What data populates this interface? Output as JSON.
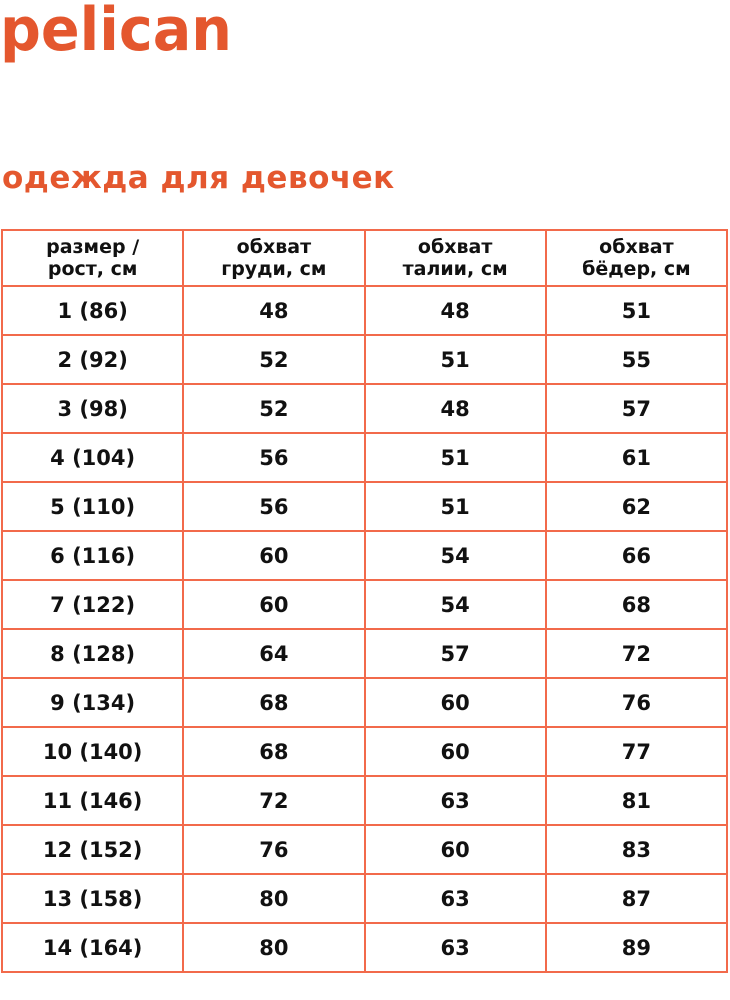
{
  "brand": {
    "logo_text": "pelican",
    "color": "#e4572e"
  },
  "title": "одежда для девочек",
  "table": {
    "border_color": "#f26a4b",
    "headers": [
      [
        "размер /",
        "рост, см"
      ],
      [
        "обхват",
        "груди, см"
      ],
      [
        "обхват",
        "талии, см"
      ],
      [
        "обхват",
        "бёдер, см"
      ]
    ],
    "rows": [
      [
        "1 (86)",
        "48",
        "48",
        "51"
      ],
      [
        "2 (92)",
        "52",
        "51",
        "55"
      ],
      [
        "3 (98)",
        "52",
        "48",
        "57"
      ],
      [
        "4 (104)",
        "56",
        "51",
        "61"
      ],
      [
        "5 (110)",
        "56",
        "51",
        "62"
      ],
      [
        "6 (116)",
        "60",
        "54",
        "66"
      ],
      [
        "7 (122)",
        "60",
        "54",
        "68"
      ],
      [
        "8 (128)",
        "64",
        "57",
        "72"
      ],
      [
        "9 (134)",
        "68",
        "60",
        "76"
      ],
      [
        "10 (140)",
        "68",
        "60",
        "77"
      ],
      [
        "11 (146)",
        "72",
        "63",
        "81"
      ],
      [
        "12 (152)",
        "76",
        "60",
        "83"
      ],
      [
        "13 (158)",
        "80",
        "63",
        "87"
      ],
      [
        "14 (164)",
        "80",
        "63",
        "89"
      ]
    ]
  }
}
